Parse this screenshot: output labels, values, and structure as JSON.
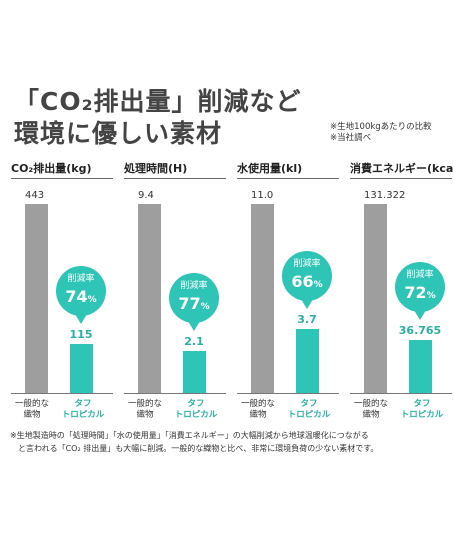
{
  "heading": {
    "line1": "「CO₂排出量」削減など",
    "line2": "環境に優しい素材"
  },
  "notes": [
    "※生地100kgあたりの比較",
    "※当社調べ"
  ],
  "chart_data": [
    {
      "type": "bar",
      "title": "CO₂排出量(kg)",
      "categories": [
        "一般的な織物",
        "タフトロピカル"
      ],
      "values": [
        443,
        115
      ],
      "labels": [
        "443",
        "115"
      ],
      "reduction_label": "削減率",
      "reduction_pct": 74,
      "reduction_text": "74",
      "pct_sign": "%"
    },
    {
      "type": "bar",
      "title": "処理時間(H)",
      "categories": [
        "一般的な織物",
        "タフトロピカル"
      ],
      "values": [
        9.4,
        2.1
      ],
      "labels": [
        "9.4",
        "2.1"
      ],
      "reduction_label": "削減率",
      "reduction_pct": 77,
      "reduction_text": "77",
      "pct_sign": "%"
    },
    {
      "type": "bar",
      "title": "水使用量(kl)",
      "categories": [
        "一般的な織物",
        "タフトロピカル"
      ],
      "values": [
        11.0,
        3.7
      ],
      "labels": [
        "11.0",
        "3.7"
      ],
      "reduction_label": "削減率",
      "reduction_pct": 66,
      "reduction_text": "66",
      "pct_sign": "%"
    },
    {
      "type": "bar",
      "title": "消費エネルギー(kcal)",
      "categories": [
        "一般的な織物",
        "タフトロピカル"
      ],
      "values": [
        131.322,
        36.765
      ],
      "labels": [
        "131.322",
        "36.765"
      ],
      "reduction_label": "削減率",
      "reduction_pct": 72,
      "reduction_text": "72",
      "pct_sign": "%"
    }
  ],
  "category_lines": {
    "grey": [
      "一般的な",
      "織物"
    ],
    "teal": [
      "タフ",
      "トロピカル"
    ]
  },
  "footnote": [
    "※生地製造時の「処理時間」「水の使用量」「消費エネルギー」の大幅削減から地球温暖化につながる",
    "と言われる「CO₂ 排出量」も大幅に削減。一般的な織物と比べ、非常に環境負荷の少ない素材です。"
  ],
  "colors": {
    "grey_bar": "#9e9e9e",
    "teal": "#2ec4b6"
  }
}
